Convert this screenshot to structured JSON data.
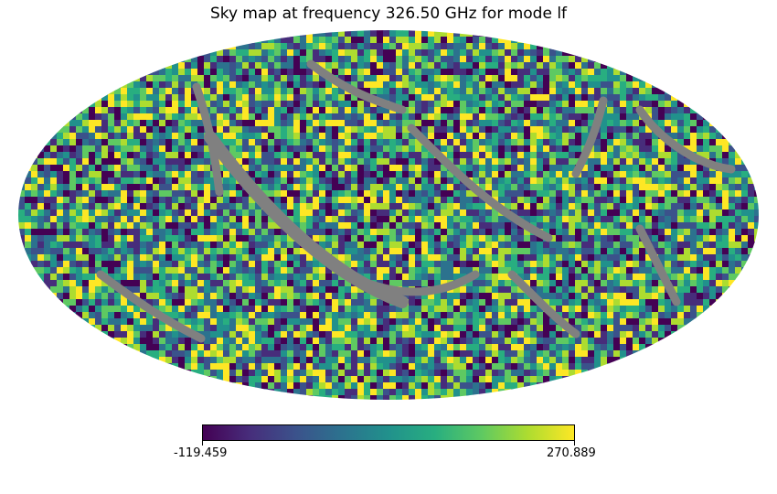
{
  "chart_data": {
    "type": "heatmap",
    "projection": "mollweide",
    "title": "Sky map at frequency 326.50 GHz for mode lf",
    "colormap": "viridis",
    "masked_color": "#808080",
    "colorbar": {
      "orientation": "horizontal",
      "min": -119.459,
      "max": 270.889,
      "min_label": "-119.459",
      "max_label": "270.889"
    },
    "grid": false
  }
}
